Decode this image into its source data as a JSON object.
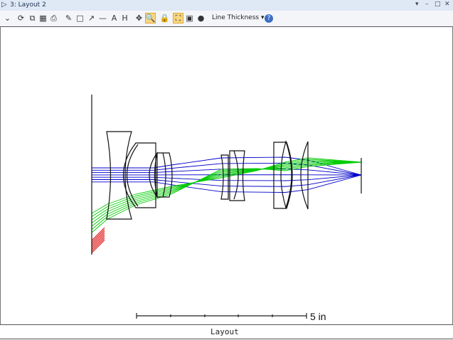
{
  "window": {
    "title": "3: Layout 2",
    "controls": [
      "▾",
      "–",
      "□",
      "✕"
    ]
  },
  "toolbar": {
    "buttons": [
      {
        "name": "settings-dropdown-icon",
        "glyph": "⌄"
      },
      {
        "name": "refresh-icon",
        "glyph": "⟳"
      },
      {
        "name": "copy-icon",
        "glyph": "⧉"
      },
      {
        "name": "export-icon",
        "glyph": "▦"
      },
      {
        "name": "print-icon",
        "glyph": "⎙"
      },
      {
        "name": "pencil-icon",
        "glyph": "✎"
      },
      {
        "name": "rectangle-icon",
        "glyph": "□"
      },
      {
        "name": "arrow-icon",
        "glyph": "↗"
      },
      {
        "name": "line-icon",
        "glyph": "—"
      },
      {
        "name": "text-icon",
        "glyph": "A"
      },
      {
        "name": "dimension-icon",
        "glyph": "H"
      },
      {
        "name": "pan-icon",
        "glyph": "✥"
      },
      {
        "name": "zoom-icon",
        "glyph": "🔍",
        "active": true
      },
      {
        "name": "lock-icon",
        "glyph": "🔒"
      },
      {
        "name": "fit-icon",
        "glyph": "⛶",
        "active": true
      },
      {
        "name": "window-icon",
        "glyph": "▣"
      },
      {
        "name": "rotate-icon",
        "glyph": "●"
      }
    ],
    "line_thickness_label": "Line Thickness ▾",
    "help_glyph": "?"
  },
  "plot": {
    "scale_label": "5 in",
    "ray_colors": {
      "field1": "#0000cc",
      "field2": "#00cc00",
      "field3": "#dd0000"
    }
  },
  "status": {
    "label": "Layout"
  }
}
